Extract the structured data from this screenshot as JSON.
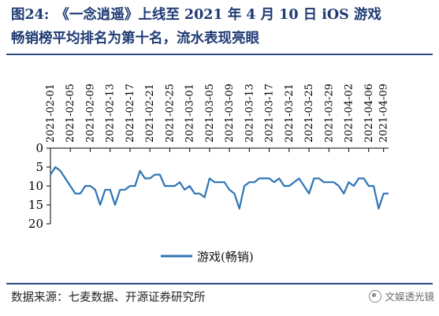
{
  "header": {
    "figure_label": "图24:",
    "title_line1": "《一念逍遥》上线至 2021 年 4 月 10 日 iOS 游戏",
    "title_line2": "畅销榜平均排名为第十名，流水表现亮眼"
  },
  "footer": {
    "source": "数据来源：七麦数据、开源证券研究所",
    "watermark": "文娱透光镜"
  },
  "colors": {
    "line": "#2e74b5",
    "title": "#1f3b73",
    "axis": "#000000"
  },
  "chart_data": {
    "type": "line",
    "title": "",
    "xlabel": "",
    "ylabel": "",
    "x_tick_labels": [
      "2021-02-01",
      "2021-02-05",
      "2021-02-09",
      "2021-02-13",
      "2021-02-17",
      "2021-02-21",
      "2021-02-25",
      "2021-03-01",
      "2021-03-05",
      "2021-03-09",
      "2021-03-13",
      "2021-03-17",
      "2021-03-21",
      "2021-03-25",
      "2021-03-29",
      "2021-04-02",
      "2021-04-06",
      "2021-04-09"
    ],
    "x_axis_position": "top",
    "y_reversed": true,
    "ylim": [
      0,
      20
    ],
    "y_ticks": [
      0,
      5,
      10,
      15,
      20
    ],
    "legend_position": "bottom",
    "series": [
      {
        "name": "游戏(畅销)",
        "x": [
          "2021-02-01",
          "2021-02-02",
          "2021-02-03",
          "2021-02-04",
          "2021-02-05",
          "2021-02-06",
          "2021-02-07",
          "2021-02-08",
          "2021-02-09",
          "2021-02-10",
          "2021-02-11",
          "2021-02-12",
          "2021-02-13",
          "2021-02-14",
          "2021-02-15",
          "2021-02-16",
          "2021-02-17",
          "2021-02-18",
          "2021-02-19",
          "2021-02-20",
          "2021-02-21",
          "2021-02-22",
          "2021-02-23",
          "2021-02-24",
          "2021-02-25",
          "2021-02-26",
          "2021-02-27",
          "2021-02-28",
          "2021-03-01",
          "2021-03-02",
          "2021-03-03",
          "2021-03-04",
          "2021-03-05",
          "2021-03-06",
          "2021-03-07",
          "2021-03-08",
          "2021-03-09",
          "2021-03-10",
          "2021-03-11",
          "2021-03-12",
          "2021-03-13",
          "2021-03-14",
          "2021-03-15",
          "2021-03-16",
          "2021-03-17",
          "2021-03-18",
          "2021-03-19",
          "2021-03-20",
          "2021-03-21",
          "2021-03-22",
          "2021-03-23",
          "2021-03-24",
          "2021-03-25",
          "2021-03-26",
          "2021-03-27",
          "2021-03-28",
          "2021-03-29",
          "2021-03-30",
          "2021-03-31",
          "2021-04-01",
          "2021-04-02",
          "2021-04-03",
          "2021-04-04",
          "2021-04-05",
          "2021-04-06",
          "2021-04-07",
          "2021-04-08",
          "2021-04-09",
          "2021-04-10"
        ],
        "values": [
          7,
          5,
          6,
          8,
          10,
          12,
          12,
          10,
          10,
          11,
          15,
          11,
          11,
          15,
          11,
          11,
          10,
          10,
          6,
          8,
          8,
          7,
          7,
          10,
          10,
          10,
          9,
          11,
          10,
          12,
          12,
          13,
          8,
          9,
          9,
          9,
          11,
          12,
          16,
          10,
          9,
          9,
          8,
          8,
          8,
          9,
          8,
          10,
          10,
          9,
          8,
          10,
          12,
          8,
          8,
          9,
          9,
          9,
          10,
          12,
          9,
          10,
          8,
          8,
          10,
          10,
          16,
          12,
          12
        ]
      }
    ]
  }
}
